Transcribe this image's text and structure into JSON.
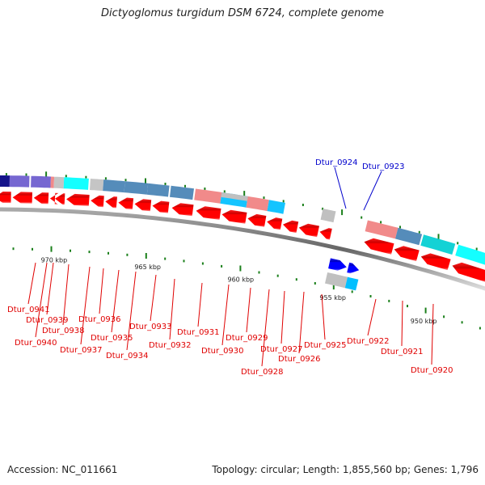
{
  "title": "Dictyoglomus turgidum DSM 6724, complete genome",
  "footer": {
    "accession": "Accession: NC_011661",
    "summary": "Topology: circular; Length: 1,855,560 bp; Genes: 1,796"
  },
  "scale_labels": [
    {
      "text": "970 kbp",
      "kbp": 970
    },
    {
      "text": "965 kbp",
      "kbp": 965
    },
    {
      "text": "960 kbp",
      "kbp": 960
    },
    {
      "text": "955 kbp",
      "kbp": 955
    },
    {
      "text": "950 kbp",
      "kbp": 950
    }
  ],
  "colors": {
    "forward_gene": "#0000ee",
    "reverse_gene": "#ff0000",
    "backbone": "#888888",
    "tick": "#1a7f1a",
    "label_red": "#e00000",
    "label_blue": "#0000cc",
    "cog_purple": "#6a5acd",
    "cog_pink": "#f08080",
    "cog_gray": "#c0c0c0",
    "cog_cyan": "#00ffff",
    "cog_steelblue": "#4682b4",
    "cog_skyblue": "#00bfff",
    "cog_teal": "#00ced1",
    "cog_navy": "#000080"
  },
  "genes_forward": [
    {
      "label": "Dtur_0924"
    },
    {
      "label": "Dtur_0923"
    }
  ],
  "genes_reverse": [
    {
      "label": "Dtur_0941"
    },
    {
      "label": "Dtur_0940"
    },
    {
      "label": "Dtur_0939"
    },
    {
      "label": "Dtur_0938"
    },
    {
      "label": "Dtur_0937"
    },
    {
      "label": "Dtur_0936"
    },
    {
      "label": "Dtur_0935"
    },
    {
      "label": "Dtur_0934"
    },
    {
      "label": "Dtur_0933"
    },
    {
      "label": "Dtur_0932"
    },
    {
      "label": "Dtur_0931"
    },
    {
      "label": "Dtur_0930"
    },
    {
      "label": "Dtur_0929"
    },
    {
      "label": "Dtur_0928"
    },
    {
      "label": "Dtur_0927"
    },
    {
      "label": "Dtur_0926"
    },
    {
      "label": "Dtur_0925"
    },
    {
      "label": "Dtur_0922"
    },
    {
      "label": "Dtur_0921"
    },
    {
      "label": "Dtur_0920"
    }
  ]
}
